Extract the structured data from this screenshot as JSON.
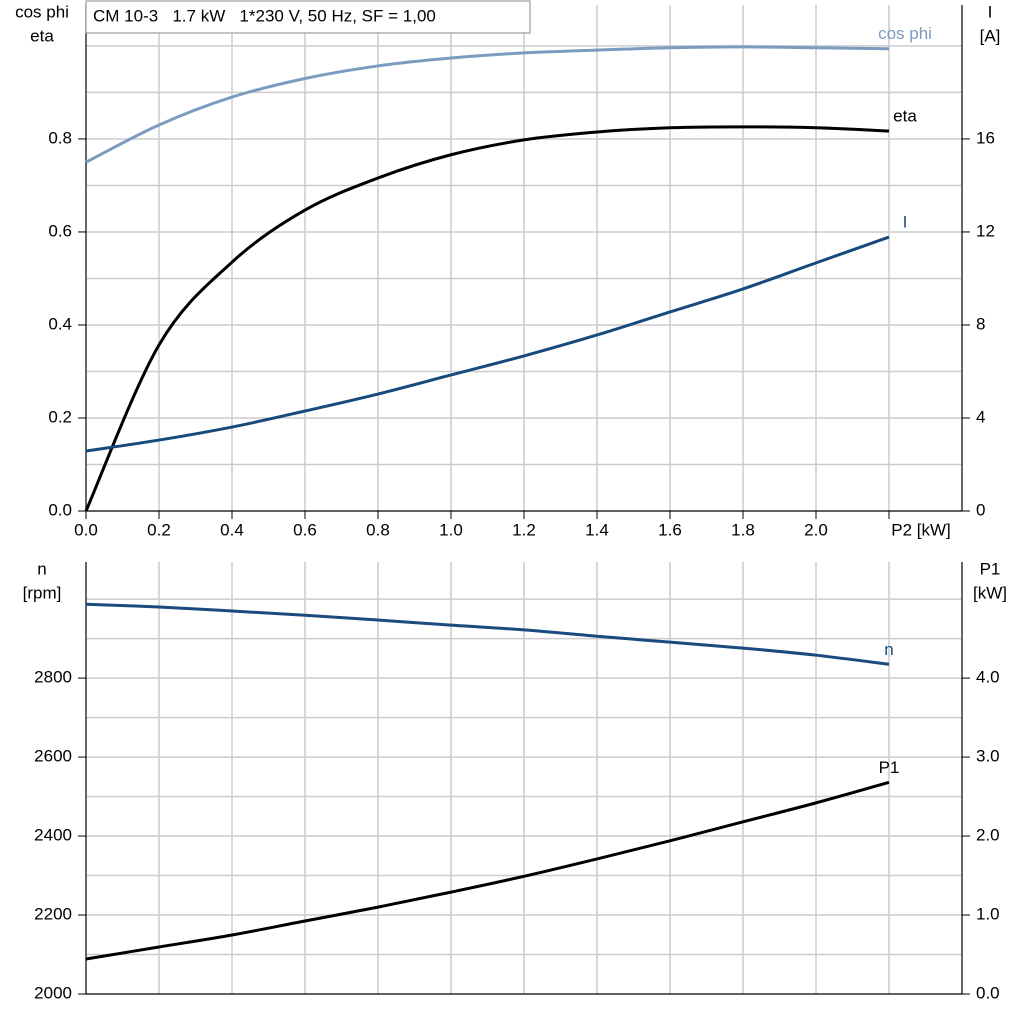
{
  "chart_data": [
    {
      "type": "line",
      "title": "CM 10-3   1.7 kW   1*230 V, 50 Hz, SF = 1,00",
      "y_label_lines": [
        "cos phi",
        "eta"
      ],
      "y2_label_lines": [
        "I",
        "[A]"
      ],
      "x": [
        0,
        0.2,
        0.4,
        0.6,
        0.8,
        1.0,
        1.2,
        1.4,
        1.6,
        1.8,
        2.0,
        2.2
      ],
      "xlim": [
        0,
        2.4
      ],
      "xticks": [
        {
          "value": 0,
          "label": "0.0"
        },
        0.2,
        0.4,
        0.6,
        0.8,
        {
          "value": 1.0,
          "label": "1.0"
        },
        1.2,
        1.4,
        1.6,
        1.8,
        {
          "value": 2.0,
          "label": "2.0"
        },
        {
          "value": 2.2,
          "label": "P2 [kW]"
        }
      ],
      "ylim": [
        0,
        1.088
      ],
      "yticks": [
        {
          "value": 0,
          "label": "0.0"
        },
        0.2,
        0.4,
        0.6,
        0.8
      ],
      "ygrid": [
        0.1,
        0.3,
        0.5,
        0.7,
        0.9,
        1.0
      ],
      "y2lim": [
        0,
        21.76
      ],
      "y2ticks": [
        0,
        4,
        8,
        12,
        16
      ],
      "grid": true,
      "series": [
        {
          "name": "cos phi",
          "color": "#7b9cc0",
          "values": [
            0.75,
            0.83,
            0.89,
            0.93,
            0.957,
            0.974,
            0.985,
            0.991,
            0.996,
            0.998,
            0.996,
            0.994
          ]
        },
        {
          "name": "eta",
          "color": "#000000",
          "values": [
            0,
            0.357,
            0.535,
            0.647,
            0.716,
            0.766,
            0.798,
            0.815,
            0.824,
            0.826,
            0.824,
            0.817
          ]
        },
        {
          "name": "I",
          "color": "#174a7c",
          "axis": "y2",
          "values": [
            2.58,
            3.05,
            3.61,
            4.3,
            5.03,
            5.85,
            6.67,
            7.57,
            8.56,
            9.55,
            10.67,
            11.78
          ]
        }
      ]
    },
    {
      "type": "line",
      "y_label_lines": [
        "n",
        "[rpm]"
      ],
      "y2_label_lines": [
        "P1",
        "[kW]"
      ],
      "x": [
        0,
        0.2,
        0.4,
        0.6,
        0.8,
        1.0,
        1.2,
        1.4,
        1.6,
        1.8,
        2.0,
        2.2
      ],
      "xlim": [
        0,
        2.4
      ],
      "xgrid": [
        0.2,
        0.4,
        0.6,
        0.8,
        1.0,
        1.2,
        1.4,
        1.6,
        1.8,
        2.0,
        2.2
      ],
      "ylim": [
        2000,
        3094
      ],
      "yticks": [
        2000,
        2200,
        2400,
        2600,
        2800
      ],
      "ygrid": [
        2100,
        2300,
        2500,
        2700,
        2900,
        3000
      ],
      "y2lim": [
        0,
        5.47
      ],
      "y2ticks": [
        {
          "value": 0,
          "label": "0.0"
        },
        {
          "value": 1,
          "label": "1.0"
        },
        {
          "value": 2,
          "label": "2.0"
        },
        {
          "value": 3,
          "label": "3.0"
        },
        {
          "value": 4,
          "label": "4.0"
        }
      ],
      "grid": true,
      "series": [
        {
          "name": "n",
          "color": "#1b4a7c",
          "values": [
            2987,
            2980,
            2970,
            2959,
            2947,
            2934,
            2922,
            2906,
            2891,
            2876,
            2858,
            2835
          ]
        },
        {
          "name": "P1",
          "color": "#000000",
          "axis": "y2",
          "values": [
            0.443,
            0.595,
            0.747,
            0.924,
            1.1,
            1.29,
            1.49,
            1.71,
            1.94,
            2.18,
            2.42,
            2.68
          ]
        }
      ]
    }
  ]
}
